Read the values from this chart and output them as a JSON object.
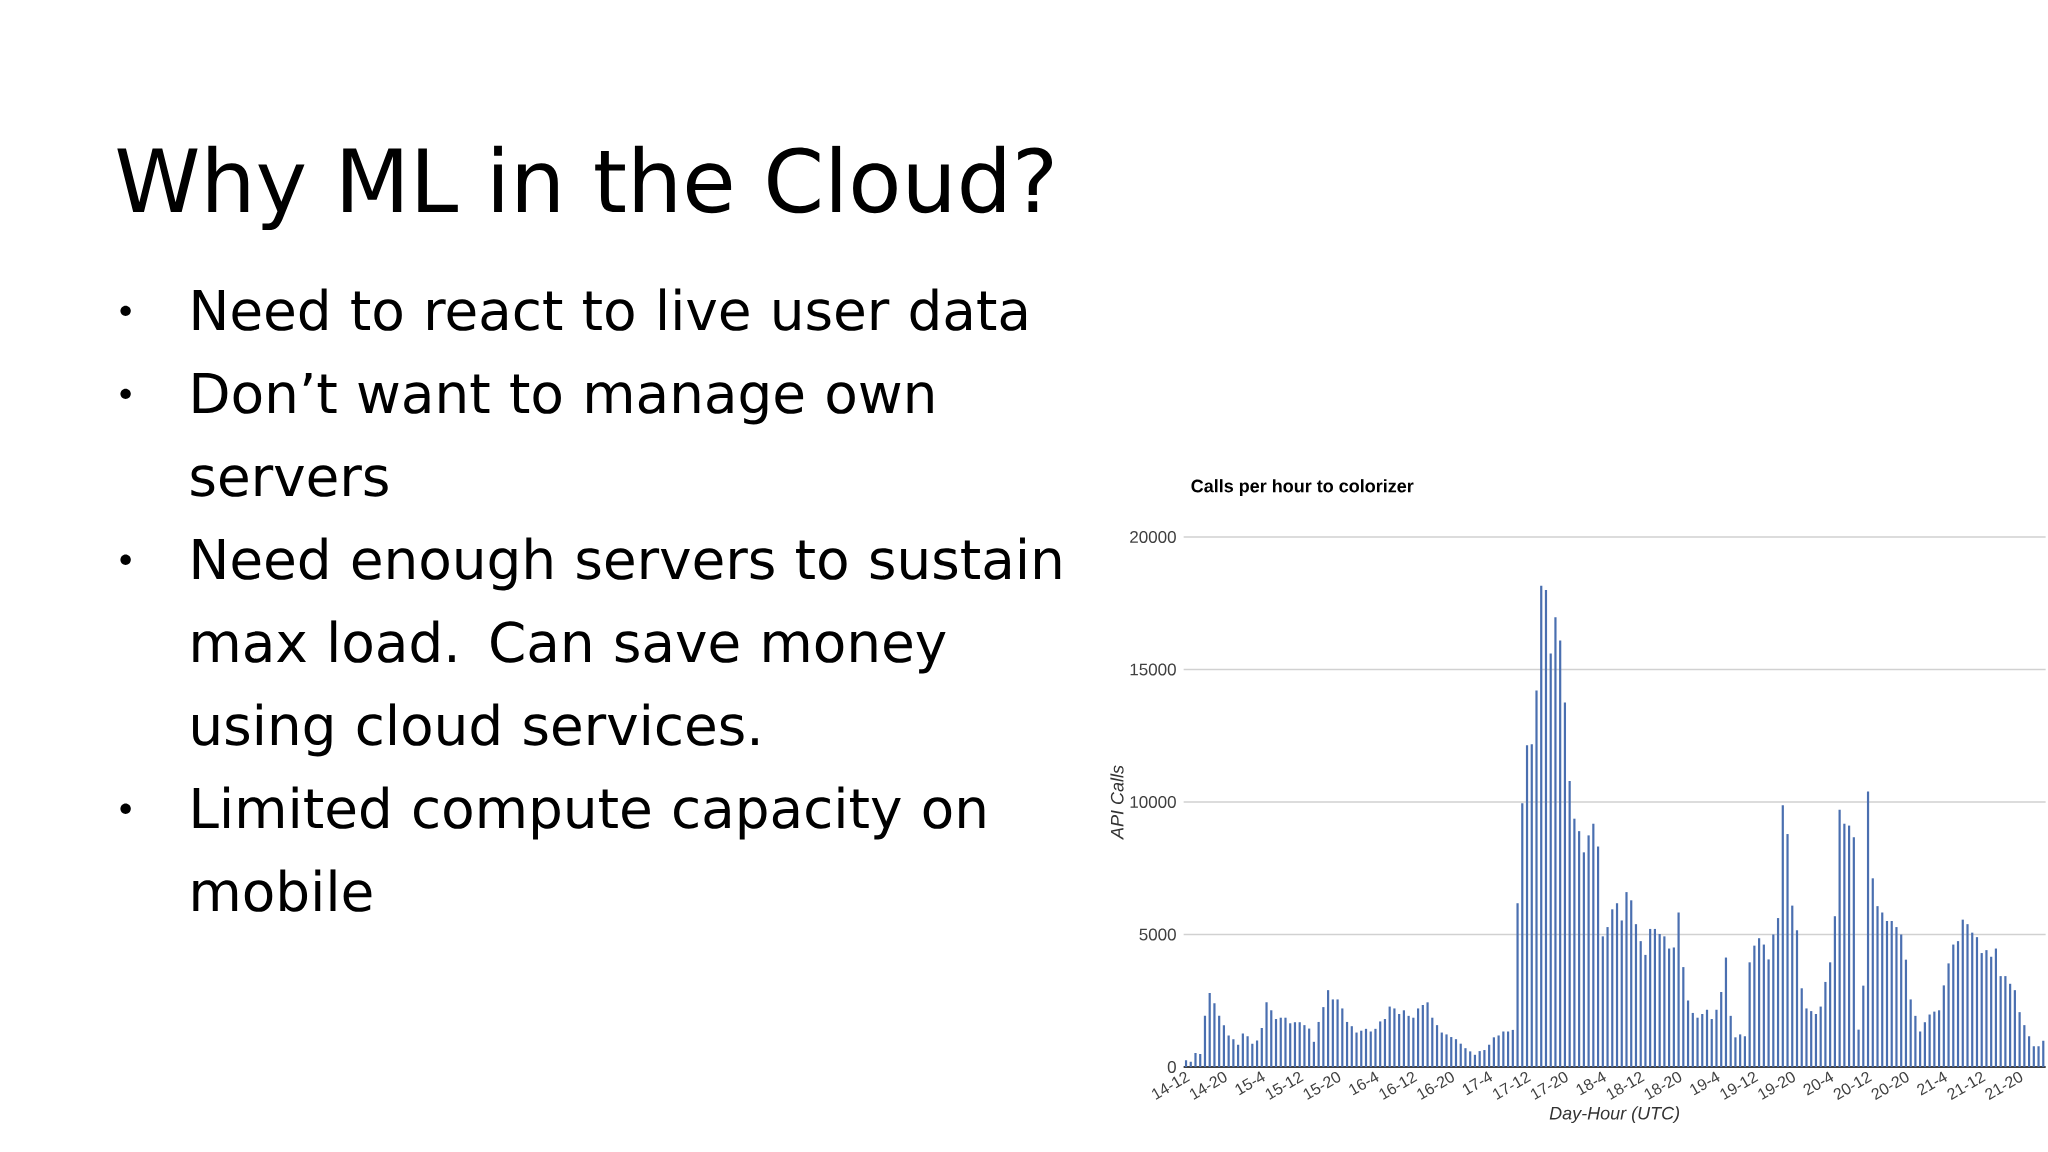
{
  "chart_data": {
    "type": "bar",
    "title": "Calls per hour to colorizer",
    "xlabel": "Day-Hour (UTC)",
    "ylabel": "API Calls",
    "annotations": [
      "Why ML in the Cloud?",
      "Need to react to live user data",
      "Don’t want to manage own servers",
      "Need enough servers to sustain max load. Can save money using cloud services.",
      "Limited compute capacity on mobile"
    ],
    "categories": [
      "14-12",
      null,
      null,
      null,
      null,
      null,
      null,
      null,
      "14-20",
      null,
      null,
      null,
      null,
      null,
      null,
      null,
      "15-4",
      null,
      null,
      null,
      null,
      null,
      null,
      null,
      "15-12",
      null,
      null,
      null,
      null,
      null,
      null,
      null,
      "15-20",
      null,
      null,
      null,
      null,
      null,
      null,
      null,
      "16-4",
      null,
      null,
      null,
      null,
      null,
      null,
      null,
      "16-12",
      null,
      null,
      null,
      null,
      null,
      null,
      null,
      "16-20",
      null,
      null,
      null,
      null,
      null,
      null,
      null,
      "17-4",
      null,
      null,
      null,
      null,
      null,
      null,
      null,
      "17-12",
      null,
      null,
      null,
      null,
      null,
      null,
      null,
      "17-20",
      null,
      null,
      null,
      null,
      null,
      null,
      null,
      "18-4",
      null,
      null,
      null,
      null,
      null,
      null,
      null,
      "18-12",
      null,
      null,
      null,
      null,
      null,
      null,
      null,
      "18-20",
      null,
      null,
      null,
      null,
      null,
      null,
      null,
      "19-4",
      null,
      null,
      null,
      null,
      null,
      null,
      null,
      "19-12",
      null,
      null,
      null,
      null,
      null,
      null,
      null,
      "19-20",
      null,
      null,
      null,
      null,
      null,
      null,
      null,
      "20-4",
      null,
      null,
      null,
      null,
      null,
      null,
      null,
      "20-12",
      null,
      null,
      null,
      null,
      null,
      null,
      null,
      "20-20",
      null,
      null,
      null,
      null,
      null,
      null,
      null,
      "21-4",
      null,
      null,
      null,
      null,
      null,
      null,
      null,
      "21-12",
      null,
      null,
      null,
      null,
      null,
      null,
      null,
      "21-20",
      null,
      null,
      null,
      null,
      null
    ],
    "values": [
      250,
      200,
      530,
      490,
      1930,
      2790,
      2410,
      1930,
      1580,
      1190,
      1050,
      840,
      1260,
      1160,
      880,
      1000,
      1470,
      2440,
      2140,
      1810,
      1860,
      1860,
      1650,
      1690,
      1690,
      1580,
      1450,
      950,
      1700,
      2260,
      2900,
      2550,
      2550,
      2210,
      1700,
      1540,
      1300,
      1370,
      1440,
      1340,
      1440,
      1720,
      1810,
      2280,
      2210,
      2000,
      2140,
      1930,
      1860,
      2210,
      2340,
      2440,
      1860,
      1580,
      1300,
      1230,
      1130,
      1050,
      880,
      710,
      590,
      460,
      600,
      640,
      840,
      1120,
      1190,
      1340,
      1340,
      1400,
      6180,
      9950,
      12140,
      12180,
      14210,
      18160,
      18000,
      15600,
      16970,
      16090,
      13750,
      10790,
      9370,
      8900,
      8100,
      8740,
      9180,
      8320,
      4930,
      5280,
      5950,
      6180,
      5530,
      6600,
      6290,
      5390,
      4750,
      4230,
      5210,
      5210,
      5020,
      4930,
      4470,
      4510,
      5830,
      3770,
      2510,
      2040,
      1860,
      2000,
      2160,
      1810,
      2160,
      2830,
      4130,
      1930,
      1120,
      1230,
      1160,
      3950,
      4580,
      4860,
      4620,
      4060,
      5000,
      5620,
      9880,
      8790,
      6090,
      5160,
      2970,
      2210,
      2110,
      2000,
      2280,
      3210,
      3950,
      5690,
      9710,
      9180,
      9110,
      8670,
      1410,
      3070,
      10400,
      7120,
      6070,
      5830,
      5510,
      5510,
      5280,
      5000,
      4050,
      2550,
      1930,
      1340,
      1690,
      1980,
      2090,
      2140,
      3080,
      3910,
      4620,
      4750,
      5560,
      5390,
      5070,
      4900,
      4300,
      4410,
      4160,
      4470,
      3430,
      3430,
      3140,
      2900,
      2070,
      1580,
      1160,
      780,
      780,
      990
    ],
    "color": "#4a6fb0",
    "ylim": [
      0,
      20000
    ],
    "yticks": [
      0,
      5000,
      10000,
      15000,
      20000
    ],
    "grid": "y"
  }
}
